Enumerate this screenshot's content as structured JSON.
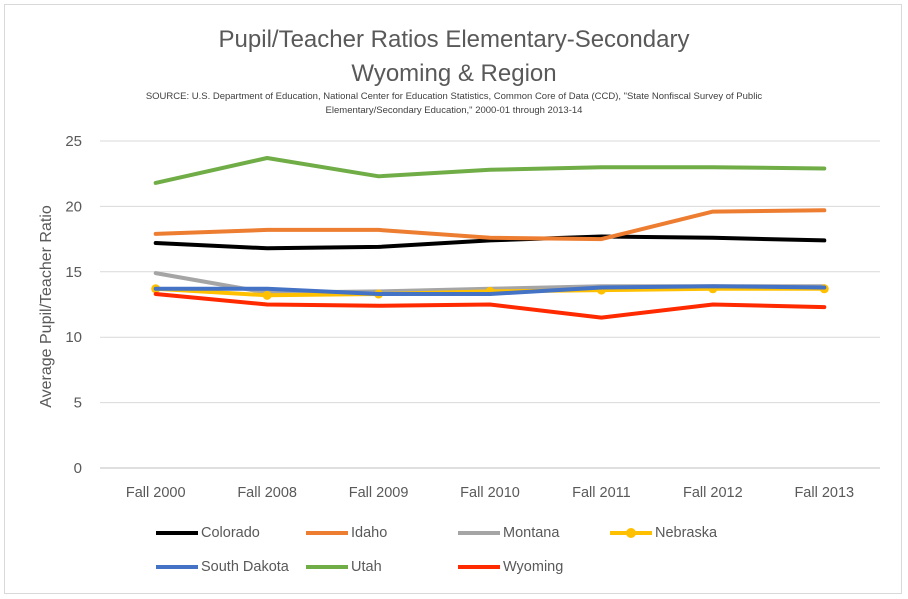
{
  "chart_data": {
    "type": "line",
    "title": "Pupil/Teacher Ratios Elementary-Secondary",
    "subtitle": "Wyoming & Region",
    "source": "SOURCE: U.S. Department of Education, National Center for Education Statistics, Common Core of Data (CCD), \"State Nonfiscal Survey of Public Elementary/Secondary Education,\" 2000-01 through 2013-14",
    "xlabel": "",
    "ylabel": "Average Pupil/Teacher Ratio",
    "categories": [
      "Fall 2000",
      "Fall 2008",
      "Fall 2009",
      "Fall 2010",
      "Fall 2011",
      "Fall 2012",
      "Fall 2013"
    ],
    "ylim": [
      0,
      25
    ],
    "yticks": [
      0,
      5,
      10,
      15,
      20,
      25
    ],
    "grid": true,
    "legend_position": "bottom",
    "series": [
      {
        "name": "Colorado",
        "color": "#000000",
        "marker": false,
        "values": [
          17.2,
          16.8,
          16.9,
          17.4,
          17.7,
          17.6,
          17.4
        ]
      },
      {
        "name": "Idaho",
        "color": "#ed7d31",
        "marker": false,
        "values": [
          17.9,
          18.2,
          18.2,
          17.6,
          17.5,
          19.6,
          19.7
        ]
      },
      {
        "name": "Montana",
        "color": "#a5a5a5",
        "marker": false,
        "values": [
          14.9,
          13.4,
          13.5,
          13.7,
          13.9,
          13.9,
          13.9
        ]
      },
      {
        "name": "Nebraska",
        "color": "#ffc000",
        "marker": true,
        "values": [
          13.7,
          13.2,
          13.3,
          13.5,
          13.6,
          13.7,
          13.7
        ]
      },
      {
        "name": "South Dakota",
        "color": "#4472c4",
        "marker": false,
        "values": [
          13.7,
          13.7,
          13.3,
          13.3,
          13.8,
          13.9,
          13.8
        ]
      },
      {
        "name": "Utah",
        "color": "#70ad47",
        "marker": false,
        "values": [
          21.8,
          23.7,
          22.3,
          22.8,
          23.0,
          23.0,
          22.9
        ]
      },
      {
        "name": "Wyoming",
        "color": "#ff2a00",
        "marker": false,
        "values": [
          13.3,
          12.5,
          12.4,
          12.5,
          11.5,
          12.5,
          12.3
        ]
      }
    ]
  }
}
